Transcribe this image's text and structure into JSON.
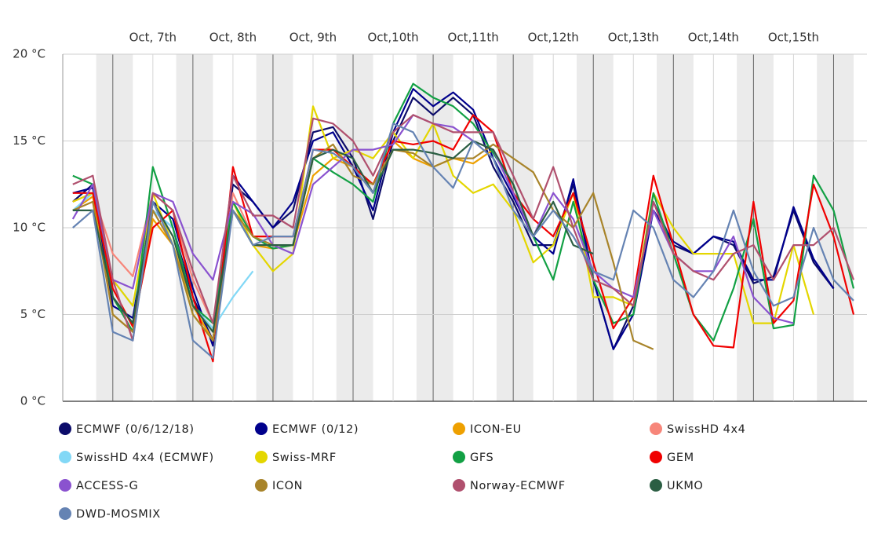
{
  "chart_data": {
    "type": "line",
    "x": [
      -12,
      -6,
      0,
      6,
      12,
      18,
      24,
      30,
      36,
      42,
      48,
      54,
      60,
      66,
      72,
      78,
      84,
      90,
      96,
      102,
      108,
      114,
      120,
      126,
      132,
      138,
      144,
      150,
      156,
      162,
      168,
      174,
      180,
      186,
      192,
      198,
      204,
      210,
      216,
      222
    ],
    "xlim": [
      -15,
      226
    ],
    "xticks": [
      {
        "value": 12,
        "label": "Oct, 7th"
      },
      {
        "value": 36,
        "label": "Oct, 8th"
      },
      {
        "value": 60,
        "label": "Oct, 9th"
      },
      {
        "value": 84,
        "label": "Oct,10th"
      },
      {
        "value": 108,
        "label": "Oct,11th"
      },
      {
        "value": 132,
        "label": "Oct,12th"
      },
      {
        "value": 156,
        "label": "Oct,13th"
      },
      {
        "value": 180,
        "label": "Oct,14th"
      },
      {
        "value": 204,
        "label": "Oct,15th"
      }
    ],
    "ylim": [
      0,
      20
    ],
    "yticks": [
      {
        "value": 0,
        "label": "0 °C"
      },
      {
        "value": 5,
        "label": "5 °C"
      },
      {
        "value": 10,
        "label": "10 °C"
      },
      {
        "value": 15,
        "label": "15 °C"
      },
      {
        "value": 20,
        "label": "20 °C"
      }
    ],
    "grid": true,
    "series": [
      {
        "name": "ECMWF (0/6/12/18)",
        "color": "#0c0c6a",
        "values": [
          11.5,
          12.5,
          6,
          4.5,
          11,
          10,
          6,
          3.5,
          12.5,
          11.5,
          10,
          11,
          15.5,
          15.8,
          14,
          10.5,
          15,
          17.5,
          16.5,
          17.5,
          16.5,
          13.5,
          11.5,
          9,
          9,
          12.5,
          7,
          3,
          5.5,
          11.5,
          9,
          8.5,
          9.5,
          9,
          6.8,
          7.2,
          11,
          8,
          6.5,
          null
        ]
      },
      {
        "name": "ECMWF (0/12)",
        "color": "#00008c",
        "values": [
          12,
          12.3,
          5.5,
          4.8,
          11.5,
          10.5,
          6.5,
          3.2,
          13,
          11.5,
          10,
          11.5,
          15,
          15.5,
          13.5,
          11,
          15.5,
          18,
          17,
          17.8,
          16.8,
          14,
          11.8,
          9.5,
          8.5,
          12.8,
          7,
          3,
          5,
          11,
          9.2,
          8.5,
          9.5,
          9.2,
          7,
          7,
          11.2,
          8.2,
          6.5,
          null
        ]
      },
      {
        "name": "ICON-EU",
        "color": "#eea000",
        "values": [
          11,
          11.8,
          5,
          4,
          10.5,
          9,
          5.5,
          3.5,
          11,
          9,
          8.8,
          9,
          13,
          14,
          13.5,
          12.5,
          15,
          14,
          13.5,
          14,
          13.7,
          14.5,
          null,
          null,
          null,
          null,
          null,
          null,
          null,
          null,
          null,
          null,
          null,
          null,
          null,
          null,
          null,
          null,
          null,
          null
        ]
      },
      {
        "name": "SwissHD 4x4",
        "color": "#f7867a",
        "values": [
          11.5,
          12,
          8.5,
          7.2,
          12,
          11,
          7,
          4.5,
          12,
          9.5,
          null,
          null,
          null,
          null,
          null,
          null,
          null,
          null,
          null,
          null,
          null,
          null,
          null,
          null,
          null,
          null,
          null,
          null,
          null,
          null,
          null,
          null,
          null,
          null,
          null,
          null,
          null,
          null,
          null,
          null
        ]
      },
      {
        "name": "SwissHD 4x4 (ECMWF)",
        "color": "#82d8f6",
        "values": [
          11,
          12,
          7,
          5.5,
          11,
          10,
          5.5,
          4.2,
          6,
          7.5,
          null,
          null,
          null,
          null,
          null,
          null,
          null,
          null,
          null,
          null,
          null,
          null,
          null,
          null,
          null,
          null,
          null,
          null,
          null,
          null,
          null,
          null,
          null,
          null,
          null,
          null,
          null,
          null,
          null,
          null
        ]
      },
      {
        "name": "Swiss-MRF",
        "color": "#e4d600",
        "values": [
          11.5,
          12,
          7,
          5.5,
          12,
          9,
          5,
          3.5,
          11.5,
          9,
          7.5,
          8.5,
          17,
          14,
          14.5,
          14,
          15.5,
          14,
          16,
          13,
          12,
          12.5,
          11,
          8,
          9,
          12,
          6,
          6,
          5.5,
          12,
          10,
          8.5,
          8.5,
          8.5,
          4.5,
          4.5,
          9,
          5,
          null,
          null
        ]
      },
      {
        "name": "GFS",
        "color": "#12a044",
        "values": [
          13,
          12.5,
          6,
          4,
          13.5,
          10,
          5.5,
          4.5,
          11.5,
          9.5,
          8.8,
          9,
          14,
          13.2,
          12.5,
          11.5,
          16,
          18.3,
          17.5,
          17,
          16,
          14.3,
          12.5,
          9.5,
          7,
          11.5,
          7,
          4.5,
          5,
          12,
          8.5,
          5,
          3.5,
          6.5,
          10.5,
          4.2,
          4.4,
          13,
          11,
          6.5
        ]
      },
      {
        "name": "GEM",
        "color": "#f00000",
        "values": [
          12,
          12,
          6.5,
          4.3,
          10,
          11,
          6,
          2.3,
          13.5,
          9.5,
          9.5,
          9.5,
          14.5,
          14.5,
          13.5,
          12.5,
          15,
          14.8,
          15,
          14.5,
          16.5,
          15.5,
          12,
          10.5,
          9.5,
          12,
          8,
          4.2,
          6,
          13,
          9,
          5,
          3.2,
          3.1,
          11.5,
          4.5,
          5.8,
          12.5,
          9.5,
          5
        ]
      },
      {
        "name": "ACCESS-G",
        "color": "#8a52cf",
        "values": [
          10.5,
          12.5,
          7,
          6.5,
          12,
          11.5,
          8.5,
          7,
          11.5,
          10.8,
          9,
          8.5,
          12.5,
          13.5,
          14.5,
          14.5,
          14.8,
          16.5,
          16,
          15.8,
          15,
          14.5,
          12,
          9.5,
          12,
          10.5,
          7.5,
          6.5,
          6,
          11,
          8.5,
          7.5,
          7.5,
          9.5,
          6,
          4.8,
          4.5,
          null,
          null,
          null
        ]
      },
      {
        "name": "ICON",
        "color": "#a8842a",
        "values": [
          11,
          11.5,
          5,
          4,
          11,
          9,
          5,
          3.5,
          11,
          9.5,
          9,
          9,
          14,
          14.8,
          13,
          12.5,
          14.5,
          14.3,
          13.5,
          14,
          14,
          14.8,
          14,
          13.2,
          11,
          10,
          12,
          8,
          3.5,
          3,
          null,
          null,
          null,
          null,
          null,
          null,
          null,
          null,
          null,
          null
        ]
      },
      {
        "name": "Norway-ECMWF",
        "color": "#b0506e",
        "values": [
          12.5,
          13,
          7,
          3.5,
          12,
          11,
          7.5,
          4.5,
          13,
          10.7,
          10.7,
          10,
          16.3,
          16,
          15,
          13,
          15.5,
          16.5,
          16,
          15.5,
          15.5,
          15.5,
          13,
          10.5,
          13.5,
          10,
          7,
          6.5,
          5.5,
          11.5,
          8.5,
          7.5,
          7,
          8.5,
          9,
          7,
          9,
          9,
          10,
          7
        ]
      },
      {
        "name": "UKMO",
        "color": "#2b5e43",
        "values": [
          11,
          11,
          6,
          4.5,
          11.5,
          9.5,
          5.5,
          4,
          11,
          9,
          9,
          9,
          14,
          14.5,
          14,
          12,
          14.5,
          14.5,
          14.3,
          14,
          15,
          14.5,
          12.5,
          9.5,
          11.5,
          9,
          8.5,
          null,
          null,
          null,
          null,
          null,
          null,
          null,
          null,
          null,
          null,
          null,
          null,
          null
        ]
      },
      {
        "name": "DWD-MOSMIX",
        "color": "#6583b3",
        "values": [
          10,
          11,
          4,
          3.5,
          11.5,
          9,
          3.5,
          2.5,
          11,
          9,
          9.5,
          9.5,
          14.5,
          14.3,
          13.5,
          12,
          16,
          15.5,
          13.5,
          12.3,
          15,
          14,
          11,
          9.5,
          11,
          9.5,
          7.5,
          7,
          11,
          10,
          7,
          6,
          7.5,
          11,
          7.5,
          5.5,
          6,
          10,
          7,
          5.8
        ]
      }
    ]
  }
}
